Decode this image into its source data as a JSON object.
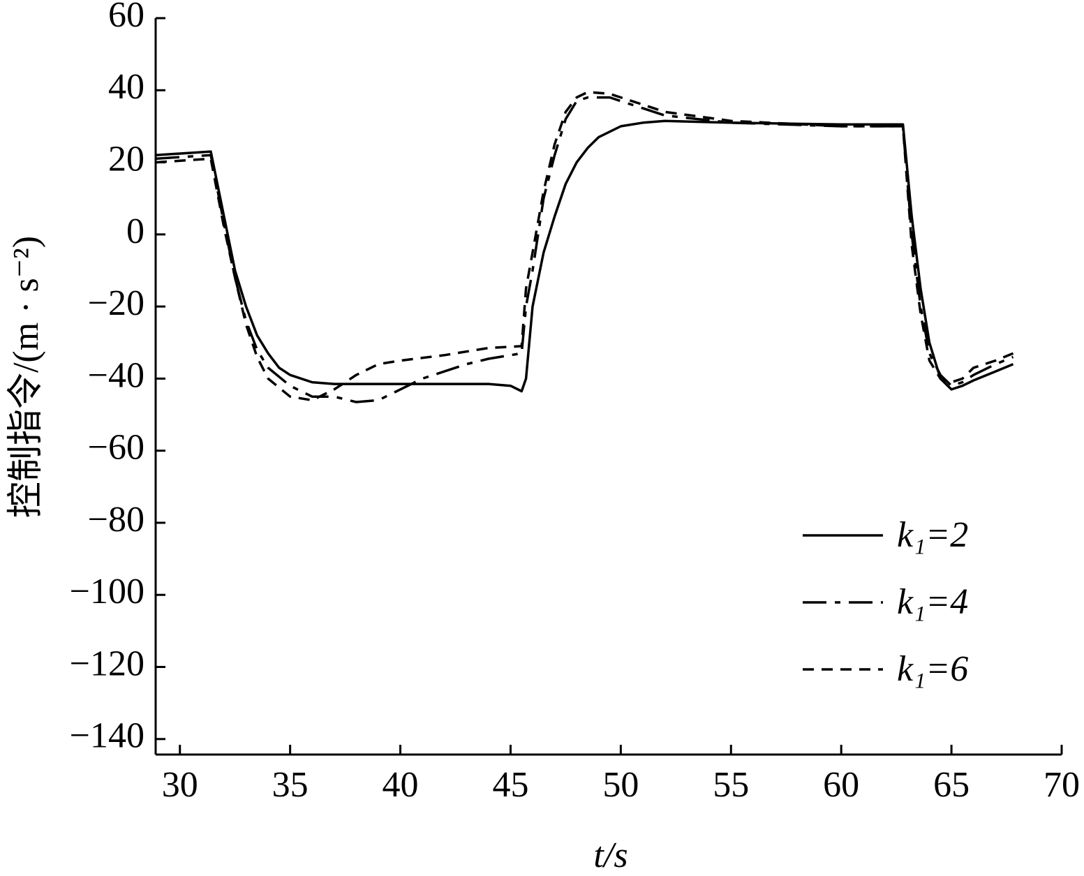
{
  "chart_data": {
    "type": "line",
    "xlabel": "t/s",
    "ylabel": "控制指令/(m · s⁻²)",
    "xlim": [
      28.9,
      70
    ],
    "ylim": [
      -144.3,
      60
    ],
    "xticks": [
      30,
      35,
      40,
      45,
      50,
      55,
      60,
      65,
      70
    ],
    "yticks": [
      {
        "value": -140,
        "label": "−140"
      },
      {
        "value": -120,
        "label": "−120"
      },
      {
        "value": -100,
        "label": "−100"
      },
      {
        "value": -80,
        "label": "−80"
      },
      {
        "value": -60,
        "label": "−60"
      },
      {
        "value": -40,
        "label": "−40"
      },
      {
        "value": -20,
        "label": "−20"
      },
      0,
      20,
      40,
      60
    ],
    "grid": false,
    "legend": "lower right",
    "series": [
      {
        "name": "k₁=2",
        "color": "#000000",
        "linestyle": "solid",
        "x": [
          28.9,
          31.4,
          32,
          32.5,
          33,
          33.5,
          34,
          34.5,
          35,
          36,
          37,
          40,
          44,
          45,
          45.5,
          45.7,
          46,
          46.5,
          47,
          47.5,
          48,
          48.5,
          49,
          50,
          51,
          52,
          55,
          60,
          62.8,
          63.2,
          63.6,
          64,
          64.5,
          65,
          65.5,
          66,
          67,
          67.8
        ],
        "values": [
          22,
          23,
          5,
          -10,
          -20,
          -28,
          -33,
          -37,
          -39,
          -41,
          -41.5,
          -41.5,
          -41.5,
          -42,
          -43.5,
          -40,
          -20,
          -5,
          5,
          14,
          20,
          24,
          27,
          30,
          31,
          31.5,
          31,
          30.5,
          30.5,
          5,
          -15,
          -30,
          -40,
          -43,
          -42,
          -40.5,
          -38,
          -36
        ]
      },
      {
        "name": "k₁=4",
        "color": "#000000",
        "linestyle": "dashdot",
        "x": [
          28.9,
          31.4,
          32,
          32.5,
          33,
          33.5,
          34,
          35,
          36,
          37,
          38,
          39,
          40,
          41,
          42,
          43,
          44,
          45,
          45.5,
          45.7,
          46,
          46.5,
          47,
          47.5,
          48,
          48.5,
          49.5,
          50,
          51,
          52,
          55,
          60,
          62.8,
          63.2,
          63.6,
          64,
          64.5,
          65,
          65.5,
          66,
          67,
          67.8
        ],
        "values": [
          21,
          22,
          3,
          -12,
          -24,
          -32,
          -37,
          -42,
          -45,
          -45,
          -46.5,
          -46,
          -43,
          -40,
          -38,
          -36,
          -34.5,
          -33.5,
          -33,
          -20,
          -10,
          10,
          22,
          32,
          37,
          38,
          38,
          37,
          35,
          33,
          31,
          30,
          30,
          0,
          -20,
          -33,
          -39,
          -42,
          -41,
          -39,
          -36,
          -34
        ]
      },
      {
        "name": "k₁=6",
        "color": "#000000",
        "linestyle": "dashed",
        "x": [
          28.9,
          31.4,
          32,
          32.5,
          33,
          33.5,
          34,
          35,
          36,
          37,
          38,
          39,
          40,
          42,
          44,
          45.5,
          45.7,
          46,
          46.5,
          47,
          47.5,
          48,
          48.5,
          49.5,
          50,
          51,
          52,
          55,
          60,
          62.8,
          63.2,
          63.6,
          64,
          64.5,
          65,
          65.5,
          66,
          67,
          67.8
        ],
        "values": [
          20,
          21,
          2,
          -12,
          -25,
          -34,
          -40,
          -45,
          -46,
          -43,
          -39,
          -36,
          -35,
          -33.5,
          -31.5,
          -31,
          -15,
          -5,
          12,
          25,
          34,
          38,
          39.5,
          39,
          38,
          36,
          34,
          31.5,
          30,
          30,
          -3,
          -22,
          -35,
          -40,
          -41,
          -40,
          -37,
          -35,
          -33
        ]
      }
    ]
  }
}
